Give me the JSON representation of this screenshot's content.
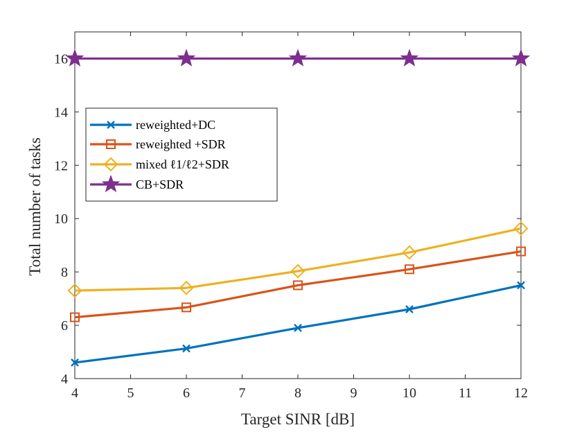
{
  "chart_data": {
    "type": "line",
    "title": "",
    "xlabel": "Target SINR [dB]",
    "ylabel": "Total number of tasks",
    "xlim": [
      4,
      12
    ],
    "ylim": [
      4,
      17
    ],
    "xticks": [
      4,
      5,
      6,
      7,
      8,
      9,
      10,
      11,
      12
    ],
    "yticks": [
      4,
      6,
      8,
      10,
      12,
      14,
      16
    ],
    "x": [
      4,
      6,
      8,
      10,
      12
    ],
    "grid": false,
    "legend_position": "upper-left",
    "series": [
      {
        "name": "reweighted+DC",
        "marker": "x",
        "color": "#0072BD",
        "values": [
          4.6,
          5.13,
          5.9,
          6.6,
          7.5
        ]
      },
      {
        "name": "reweighted +SDR",
        "marker": "square",
        "color": "#D95319",
        "values": [
          6.3,
          6.67,
          7.5,
          8.1,
          8.77
        ]
      },
      {
        "name": "mixed ℓ1/ℓ2+SDR",
        "marker": "diamond",
        "color": "#EDB120",
        "values": [
          7.3,
          7.4,
          8.03,
          8.73,
          9.63
        ]
      },
      {
        "name": "CB+SDR",
        "marker": "star",
        "color": "#7E2F8E",
        "values": [
          16,
          16,
          16,
          16,
          16
        ]
      }
    ]
  }
}
